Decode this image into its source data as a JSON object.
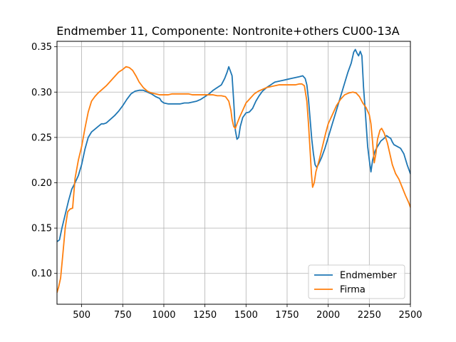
{
  "chart_data": {
    "type": "line",
    "title": "Endmember 11, Componente: Nontronite+others CU00-13A",
    "xlabel": "",
    "ylabel": "",
    "xlim": [
      350,
      2500
    ],
    "ylim": [
      0.066,
      0.356
    ],
    "xticks": [
      500,
      750,
      1000,
      1250,
      1500,
      1750,
      2000,
      2250,
      2500
    ],
    "yticks": [
      0.1,
      0.15,
      0.2,
      0.25,
      0.3,
      0.35
    ],
    "xtick_labels": [
      "500",
      "750",
      "1000",
      "1250",
      "1500",
      "1750",
      "2000",
      "2250",
      "2500"
    ],
    "ytick_labels": [
      "0.10",
      "0.15",
      "0.20",
      "0.25",
      "0.30",
      "0.35"
    ],
    "grid": true,
    "legend_position": "lower-right",
    "series": [
      {
        "name": "Endmember",
        "color": "#1f77b4",
        "points": [
          [
            350,
            0.135
          ],
          [
            365,
            0.137
          ],
          [
            380,
            0.15
          ],
          [
            400,
            0.165
          ],
          [
            420,
            0.18
          ],
          [
            440,
            0.193
          ],
          [
            460,
            0.2
          ],
          [
            480,
            0.208
          ],
          [
            500,
            0.22
          ],
          [
            520,
            0.237
          ],
          [
            540,
            0.25
          ],
          [
            560,
            0.256
          ],
          [
            580,
            0.259
          ],
          [
            600,
            0.262
          ],
          [
            620,
            0.265
          ],
          [
            635,
            0.265
          ],
          [
            650,
            0.266
          ],
          [
            675,
            0.27
          ],
          [
            700,
            0.274
          ],
          [
            725,
            0.279
          ],
          [
            750,
            0.285
          ],
          [
            775,
            0.292
          ],
          [
            800,
            0.298
          ],
          [
            825,
            0.301
          ],
          [
            850,
            0.302
          ],
          [
            875,
            0.302
          ],
          [
            900,
            0.3
          ],
          [
            925,
            0.298
          ],
          [
            950,
            0.295
          ],
          [
            975,
            0.293
          ],
          [
            985,
            0.29
          ],
          [
            1000,
            0.288
          ],
          [
            1025,
            0.287
          ],
          [
            1050,
            0.287
          ],
          [
            1075,
            0.287
          ],
          [
            1100,
            0.287
          ],
          [
            1125,
            0.288
          ],
          [
            1150,
            0.288
          ],
          [
            1175,
            0.289
          ],
          [
            1200,
            0.29
          ],
          [
            1225,
            0.292
          ],
          [
            1250,
            0.295
          ],
          [
            1275,
            0.298
          ],
          [
            1300,
            0.302
          ],
          [
            1325,
            0.305
          ],
          [
            1350,
            0.308
          ],
          [
            1370,
            0.315
          ],
          [
            1385,
            0.322
          ],
          [
            1395,
            0.328
          ],
          [
            1405,
            0.323
          ],
          [
            1415,
            0.318
          ],
          [
            1425,
            0.29
          ],
          [
            1435,
            0.258
          ],
          [
            1445,
            0.248
          ],
          [
            1455,
            0.25
          ],
          [
            1465,
            0.262
          ],
          [
            1480,
            0.272
          ],
          [
            1500,
            0.277
          ],
          [
            1520,
            0.278
          ],
          [
            1540,
            0.282
          ],
          [
            1560,
            0.29
          ],
          [
            1580,
            0.296
          ],
          [
            1600,
            0.301
          ],
          [
            1625,
            0.305
          ],
          [
            1650,
            0.308
          ],
          [
            1675,
            0.311
          ],
          [
            1700,
            0.312
          ],
          [
            1725,
            0.313
          ],
          [
            1750,
            0.314
          ],
          [
            1775,
            0.315
          ],
          [
            1800,
            0.316
          ],
          [
            1825,
            0.317
          ],
          [
            1845,
            0.318
          ],
          [
            1860,
            0.315
          ],
          [
            1870,
            0.308
          ],
          [
            1880,
            0.292
          ],
          [
            1890,
            0.27
          ],
          [
            1900,
            0.248
          ],
          [
            1910,
            0.232
          ],
          [
            1920,
            0.22
          ],
          [
            1930,
            0.217
          ],
          [
            1940,
            0.22
          ],
          [
            1960,
            0.228
          ],
          [
            1980,
            0.238
          ],
          [
            2000,
            0.25
          ],
          [
            2025,
            0.265
          ],
          [
            2050,
            0.28
          ],
          [
            2075,
            0.295
          ],
          [
            2100,
            0.31
          ],
          [
            2120,
            0.322
          ],
          [
            2140,
            0.332
          ],
          [
            2155,
            0.344
          ],
          [
            2165,
            0.347
          ],
          [
            2175,
            0.343
          ],
          [
            2185,
            0.34
          ],
          [
            2195,
            0.345
          ],
          [
            2205,
            0.34
          ],
          [
            2215,
            0.305
          ],
          [
            2225,
            0.28
          ],
          [
            2240,
            0.24
          ],
          [
            2250,
            0.225
          ],
          [
            2260,
            0.212
          ],
          [
            2270,
            0.225
          ],
          [
            2285,
            0.235
          ],
          [
            2300,
            0.24
          ],
          [
            2320,
            0.246
          ],
          [
            2340,
            0.249
          ],
          [
            2355,
            0.252
          ],
          [
            2370,
            0.25
          ],
          [
            2380,
            0.249
          ],
          [
            2390,
            0.245
          ],
          [
            2400,
            0.242
          ],
          [
            2420,
            0.24
          ],
          [
            2440,
            0.238
          ],
          [
            2460,
            0.232
          ],
          [
            2480,
            0.22
          ],
          [
            2500,
            0.21
          ]
        ]
      },
      {
        "name": "Firma",
        "color": "#ff7f0e",
        "points": [
          [
            350,
            0.079
          ],
          [
            360,
            0.085
          ],
          [
            372,
            0.095
          ],
          [
            385,
            0.12
          ],
          [
            400,
            0.15
          ],
          [
            415,
            0.168
          ],
          [
            430,
            0.171
          ],
          [
            445,
            0.172
          ],
          [
            460,
            0.205
          ],
          [
            480,
            0.225
          ],
          [
            500,
            0.24
          ],
          [
            520,
            0.26
          ],
          [
            540,
            0.278
          ],
          [
            560,
            0.29
          ],
          [
            580,
            0.295
          ],
          [
            600,
            0.299
          ],
          [
            625,
            0.303
          ],
          [
            650,
            0.307
          ],
          [
            675,
            0.312
          ],
          [
            700,
            0.317
          ],
          [
            725,
            0.322
          ],
          [
            750,
            0.325
          ],
          [
            770,
            0.328
          ],
          [
            790,
            0.327
          ],
          [
            810,
            0.324
          ],
          [
            830,
            0.318
          ],
          [
            850,
            0.311
          ],
          [
            875,
            0.305
          ],
          [
            900,
            0.301
          ],
          [
            925,
            0.299
          ],
          [
            950,
            0.298
          ],
          [
            975,
            0.297
          ],
          [
            1000,
            0.297
          ],
          [
            1025,
            0.297
          ],
          [
            1050,
            0.298
          ],
          [
            1075,
            0.298
          ],
          [
            1100,
            0.298
          ],
          [
            1125,
            0.298
          ],
          [
            1150,
            0.298
          ],
          [
            1175,
            0.297
          ],
          [
            1200,
            0.297
          ],
          [
            1250,
            0.297
          ],
          [
            1275,
            0.297
          ],
          [
            1300,
            0.297
          ],
          [
            1325,
            0.296
          ],
          [
            1350,
            0.296
          ],
          [
            1375,
            0.295
          ],
          [
            1395,
            0.29
          ],
          [
            1408,
            0.28
          ],
          [
            1415,
            0.27
          ],
          [
            1425,
            0.262
          ],
          [
            1435,
            0.26
          ],
          [
            1445,
            0.265
          ],
          [
            1460,
            0.272
          ],
          [
            1480,
            0.28
          ],
          [
            1500,
            0.288
          ],
          [
            1525,
            0.293
          ],
          [
            1550,
            0.298
          ],
          [
            1575,
            0.301
          ],
          [
            1600,
            0.303
          ],
          [
            1625,
            0.305
          ],
          [
            1650,
            0.306
          ],
          [
            1675,
            0.307
          ],
          [
            1700,
            0.308
          ],
          [
            1725,
            0.308
          ],
          [
            1750,
            0.308
          ],
          [
            1775,
            0.308
          ],
          [
            1800,
            0.308
          ],
          [
            1825,
            0.309
          ],
          [
            1840,
            0.309
          ],
          [
            1855,
            0.307
          ],
          [
            1870,
            0.29
          ],
          [
            1880,
            0.265
          ],
          [
            1890,
            0.235
          ],
          [
            1898,
            0.21
          ],
          [
            1905,
            0.195
          ],
          [
            1915,
            0.2
          ],
          [
            1925,
            0.212
          ],
          [
            1945,
            0.225
          ],
          [
            1965,
            0.24
          ],
          [
            1985,
            0.255
          ],
          [
            2000,
            0.265
          ],
          [
            2025,
            0.275
          ],
          [
            2050,
            0.285
          ],
          [
            2075,
            0.292
          ],
          [
            2100,
            0.297
          ],
          [
            2125,
            0.299
          ],
          [
            2150,
            0.3
          ],
          [
            2170,
            0.299
          ],
          [
            2190,
            0.295
          ],
          [
            2210,
            0.288
          ],
          [
            2230,
            0.283
          ],
          [
            2250,
            0.275
          ],
          [
            2260,
            0.265
          ],
          [
            2270,
            0.245
          ],
          [
            2280,
            0.222
          ],
          [
            2290,
            0.232
          ],
          [
            2300,
            0.248
          ],
          [
            2315,
            0.258
          ],
          [
            2325,
            0.26
          ],
          [
            2340,
            0.255
          ],
          [
            2360,
            0.244
          ],
          [
            2375,
            0.232
          ],
          [
            2390,
            0.22
          ],
          [
            2410,
            0.21
          ],
          [
            2430,
            0.204
          ],
          [
            2450,
            0.195
          ],
          [
            2470,
            0.186
          ],
          [
            2490,
            0.178
          ],
          [
            2500,
            0.173
          ]
        ]
      }
    ]
  }
}
